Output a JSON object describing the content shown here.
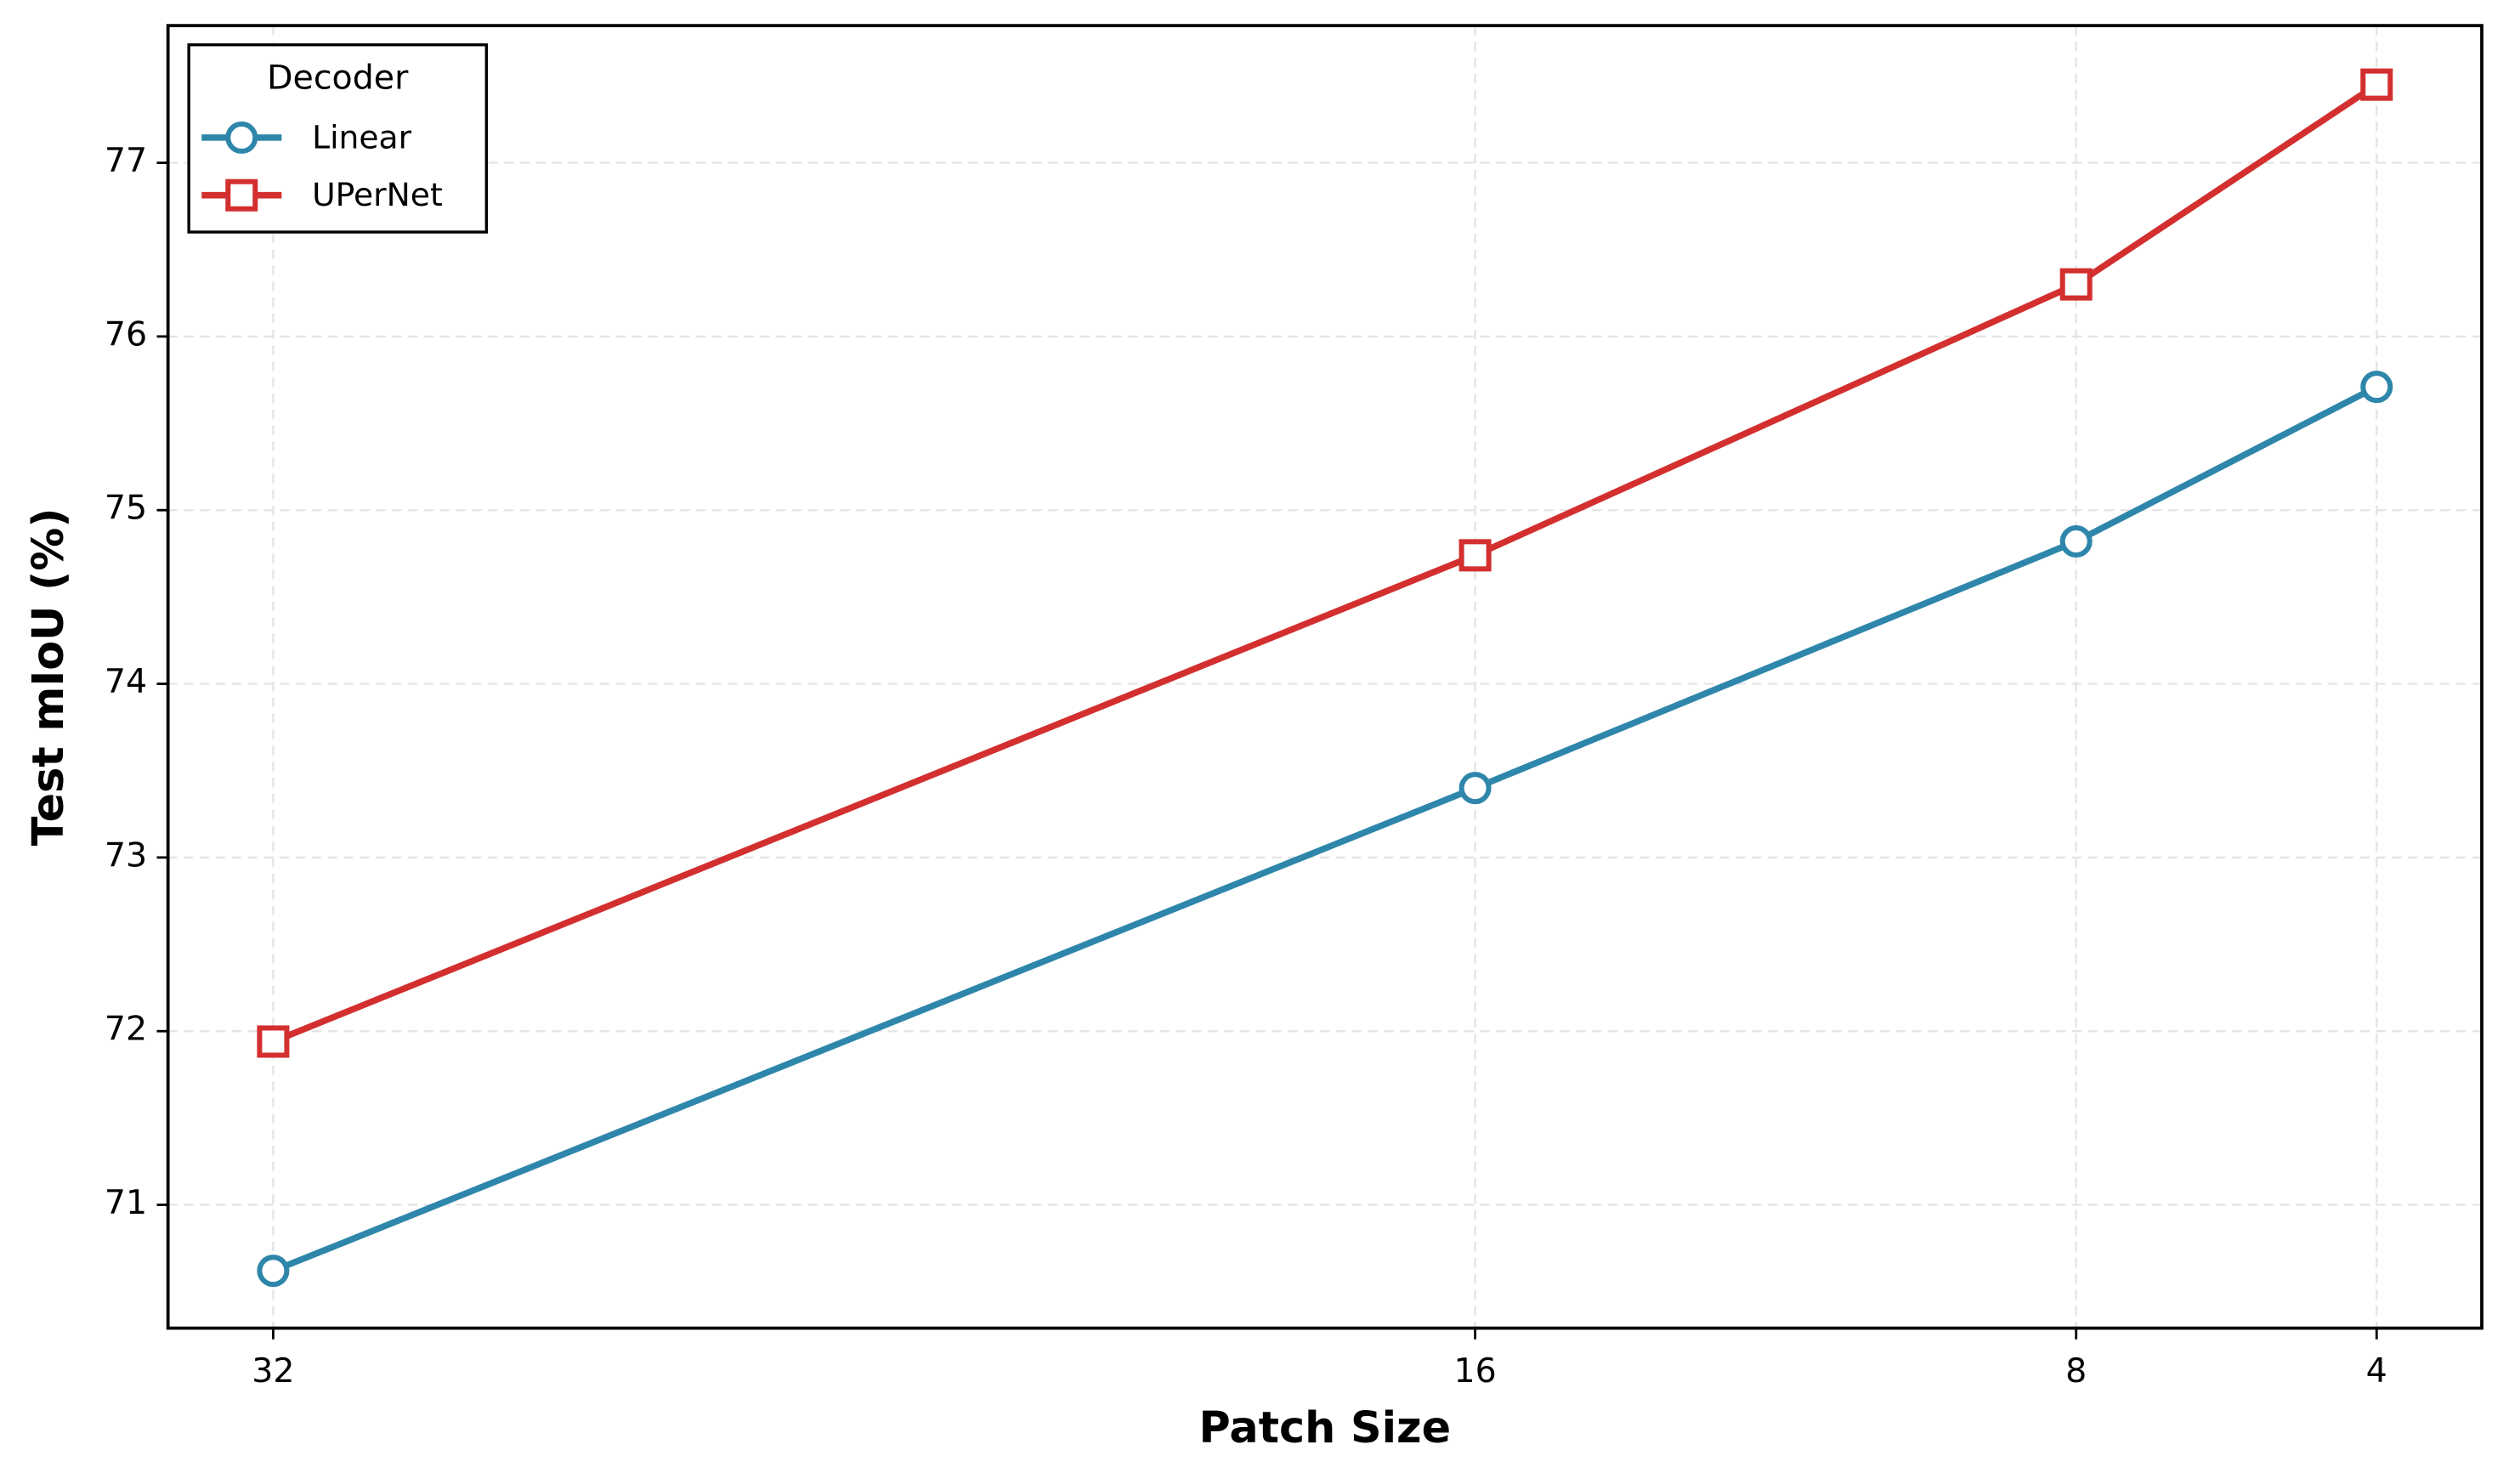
{
  "chart_data": {
    "type": "line",
    "xlabel": "Patch Size",
    "ylabel": "Test mIoU (%)",
    "x": [
      32,
      16,
      8,
      4
    ],
    "series": [
      {
        "name": "Linear",
        "color": "#2e86ab",
        "marker": "circle",
        "values": [
          70.62,
          73.4,
          74.82,
          75.71
        ]
      },
      {
        "name": "UPerNet",
        "color": "#d32f2f",
        "marker": "square",
        "values": [
          71.94,
          74.74,
          76.3,
          77.45
        ]
      }
    ],
    "xlim": [
      33.4,
      2.6
    ],
    "xticks": [
      32,
      16,
      8,
      4
    ],
    "ylim": [
      70.29,
      77.79
    ],
    "yticks": [
      71,
      72,
      73,
      74,
      75,
      76,
      77
    ],
    "grid": true,
    "legend_title": "Decoder",
    "legend_position": "upper-left"
  }
}
